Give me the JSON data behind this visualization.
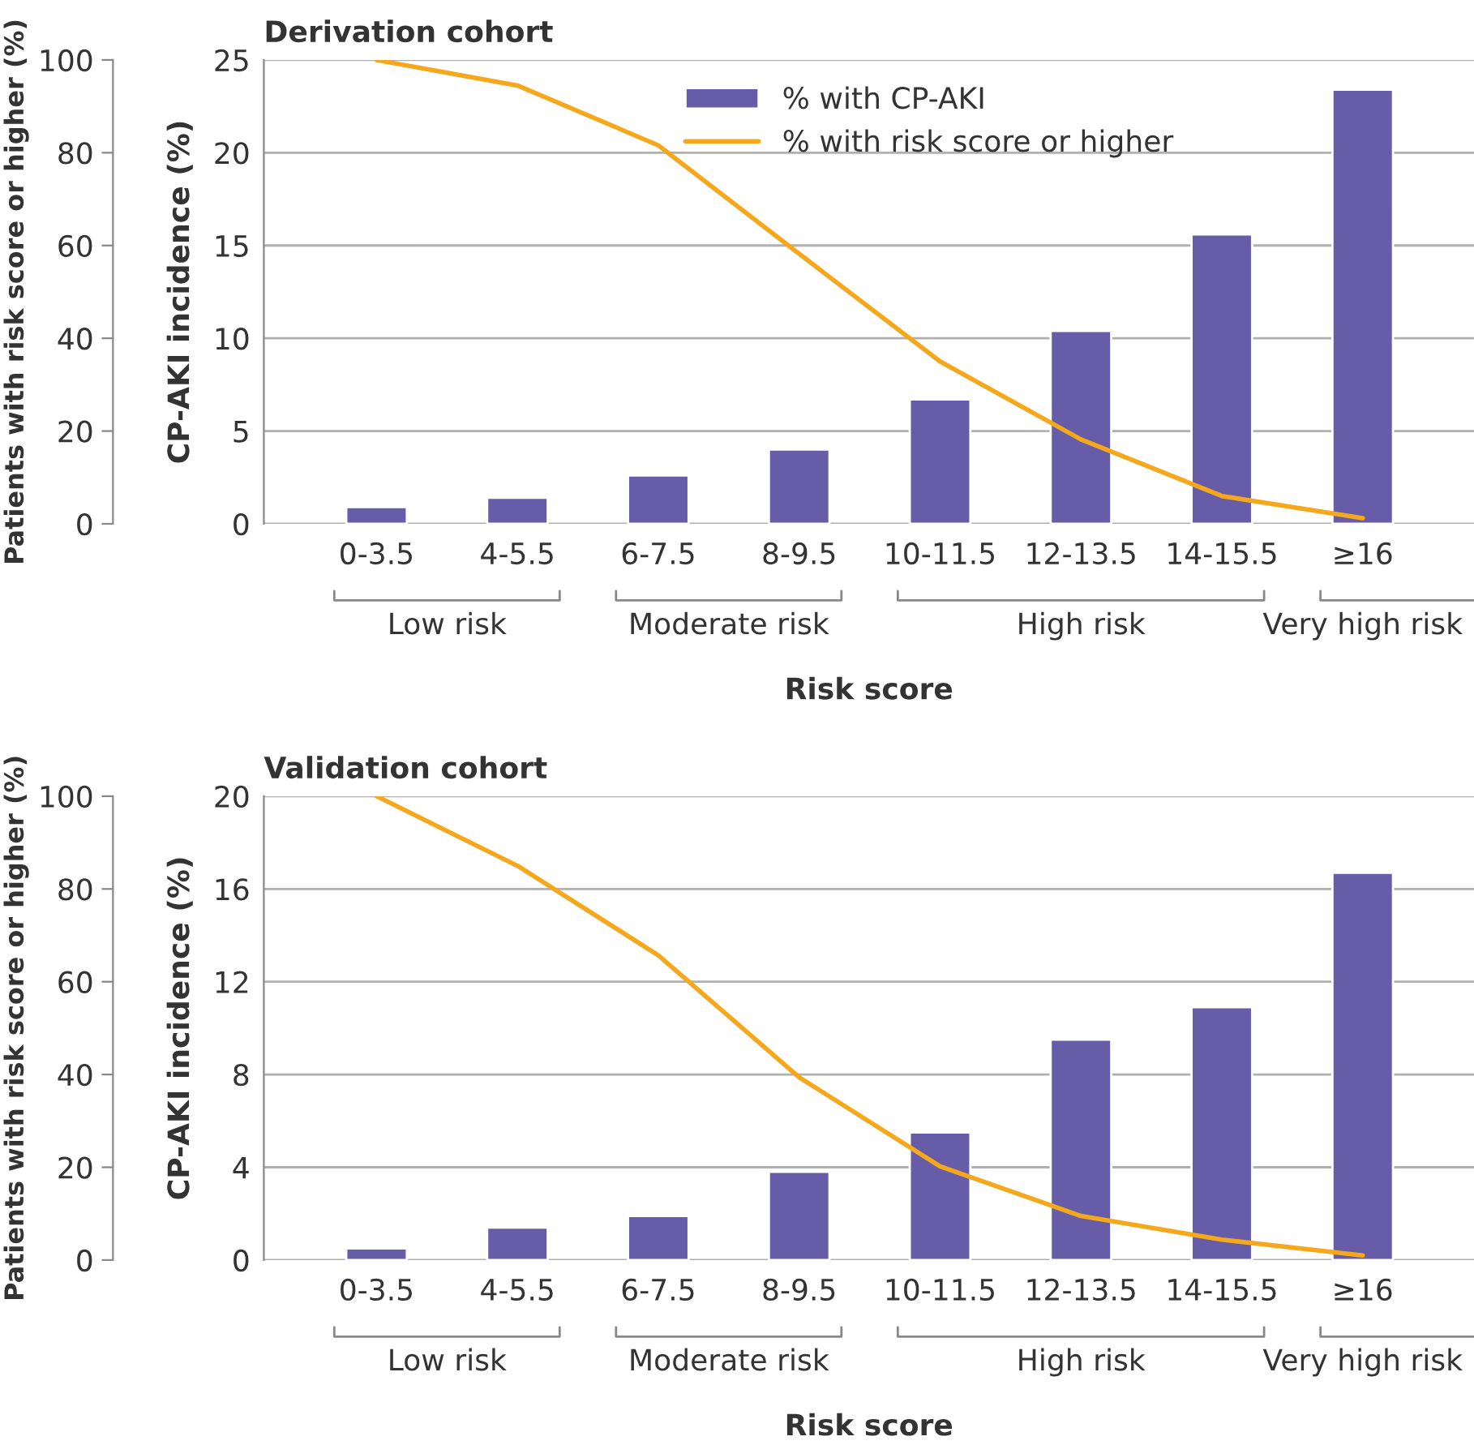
{
  "chart_data": [
    {
      "type": "bar",
      "title": "Derivation cohort",
      "xlabel": "Risk score",
      "ylabel": "CP-AKI incidence (%)",
      "y2label": "Patients with risk score or higher (%)",
      "categories": [
        "0-3.5",
        "4-5.5",
        "6-7.5",
        "8-9.5",
        "10-11.5",
        "12-13.5",
        "14-15.5",
        "≥16"
      ],
      "series": [
        {
          "name": "% with CP-AKI",
          "color": "#665ca8",
          "values": [
            0.9,
            1.4,
            2.6,
            4.0,
            6.7,
            10.4,
            15.6,
            23.4
          ]
        },
        {
          "name": "% with risk score or higher",
          "type": "line",
          "axis": "y2",
          "color": "#f5a81c",
          "values": [
            100,
            94.5,
            81.6,
            58.2,
            35,
            18.2,
            6,
            1.2
          ]
        }
      ],
      "ylim": [
        0,
        25
      ],
      "yticks": [
        0,
        5,
        10,
        15,
        20,
        25
      ],
      "y2lim": [
        0,
        100
      ],
      "y2ticks": [
        0,
        20,
        40,
        60,
        80,
        100
      ],
      "annotations": [
        "Low risk",
        "Moderate risk",
        "High risk",
        "Very high risk"
      ],
      "grid": "y",
      "legend": "top",
      "marker": "none",
      "line_style": "solid"
    },
    {
      "type": "bar",
      "title": "Validation cohort",
      "xlabel": "Risk score",
      "ylabel": "CP-AKI incidence (%)",
      "y2label": "Patients with risk score or higher (%)",
      "categories": [
        "0-3.5",
        "4-5.5",
        "6-7.5",
        "8-9.5",
        "10-11.5",
        "12-13.5",
        "14-15.5",
        "≥16"
      ],
      "series": [
        {
          "color": "#665ca8",
          "values": [
            0.5,
            1.4,
            1.9,
            3.8,
            5.5,
            9.5,
            10.9,
            16.7
          ]
        },
        {
          "type": "line",
          "axis": "y2",
          "color": "#f5a81c",
          "values": [
            100,
            85,
            65.7,
            39.4,
            20.2,
            9.5,
            4.4,
            1.0
          ]
        }
      ],
      "ylim": [
        0,
        20
      ],
      "yticks": [
        0,
        4,
        8,
        12,
        16,
        20
      ],
      "y2lim": [
        0,
        100
      ],
      "y2ticks": [
        0,
        20,
        40,
        60,
        80,
        100
      ],
      "annotations": [
        "Low risk",
        "Moderate risk",
        "High risk",
        "Very high risk"
      ],
      "grid": "y",
      "marker": "none",
      "line_style": "solid"
    }
  ]
}
